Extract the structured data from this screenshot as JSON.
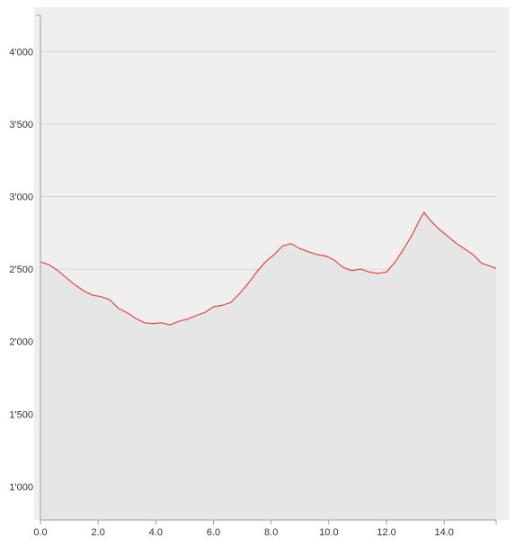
{
  "chart_data": {
    "type": "area",
    "title": "",
    "xlabel": "",
    "ylabel": "",
    "xlim": [
      0,
      15.8
    ],
    "ylim": [
      770,
      4250
    ],
    "grid": {
      "y": true,
      "x": false
    },
    "x_ticks": [
      {
        "value": 0,
        "label": "0.0"
      },
      {
        "value": 2,
        "label": "2.0"
      },
      {
        "value": 4,
        "label": "4.0"
      },
      {
        "value": 6,
        "label": "6.0"
      },
      {
        "value": 8,
        "label": "8.0"
      },
      {
        "value": 10,
        "label": "10.0"
      },
      {
        "value": 12,
        "label": "12.0"
      },
      {
        "value": 14,
        "label": "14.0"
      }
    ],
    "y_ticks": [
      {
        "value": 1000,
        "label": "1'000"
      },
      {
        "value": 1500,
        "label": "1'500"
      },
      {
        "value": 2000,
        "label": "2'000"
      },
      {
        "value": 2500,
        "label": "2'500"
      },
      {
        "value": 3000,
        "label": "3'000"
      },
      {
        "value": 3500,
        "label": "3'500"
      },
      {
        "value": 4000,
        "label": "4'000"
      }
    ],
    "series": [
      {
        "points": [
          [
            0.0,
            2550
          ],
          [
            0.3,
            2530
          ],
          [
            0.6,
            2490
          ],
          [
            0.9,
            2440
          ],
          [
            1.2,
            2390
          ],
          [
            1.5,
            2350
          ],
          [
            1.8,
            2320
          ],
          [
            2.1,
            2310
          ],
          [
            2.4,
            2290
          ],
          [
            2.7,
            2230
          ],
          [
            3.0,
            2200
          ],
          [
            3.3,
            2160
          ],
          [
            3.6,
            2130
          ],
          [
            3.9,
            2125
          ],
          [
            4.2,
            2130
          ],
          [
            4.5,
            2115
          ],
          [
            4.8,
            2140
          ],
          [
            5.1,
            2155
          ],
          [
            5.4,
            2180
          ],
          [
            5.7,
            2200
          ],
          [
            6.0,
            2240
          ],
          [
            6.3,
            2250
          ],
          [
            6.6,
            2270
          ],
          [
            6.9,
            2330
          ],
          [
            7.2,
            2400
          ],
          [
            7.5,
            2480
          ],
          [
            7.8,
            2550
          ],
          [
            8.1,
            2600
          ],
          [
            8.4,
            2660
          ],
          [
            8.7,
            2675
          ],
          [
            9.0,
            2640
          ],
          [
            9.3,
            2620
          ],
          [
            9.6,
            2600
          ],
          [
            9.9,
            2590
          ],
          [
            10.2,
            2560
          ],
          [
            10.5,
            2510
          ],
          [
            10.8,
            2490
          ],
          [
            11.1,
            2500
          ],
          [
            11.4,
            2480
          ],
          [
            11.7,
            2470
          ],
          [
            12.0,
            2480
          ],
          [
            12.3,
            2550
          ],
          [
            12.6,
            2640
          ],
          [
            12.9,
            2740
          ],
          [
            13.2,
            2860
          ],
          [
            13.3,
            2890
          ],
          [
            13.5,
            2840
          ],
          [
            13.8,
            2780
          ],
          [
            14.1,
            2730
          ],
          [
            14.4,
            2680
          ],
          [
            14.7,
            2640
          ],
          [
            15.0,
            2600
          ],
          [
            15.3,
            2540
          ],
          [
            15.6,
            2520
          ],
          [
            15.8,
            2505
          ]
        ],
        "color": "#e8473f"
      }
    ],
    "colors": {
      "page_background": "#ffffff",
      "plot_background": "#efefef",
      "area_fill": "#e6e6e6",
      "grid": "#d6d6d6",
      "axis": "#9e9e9e",
      "line": "#e8473f"
    }
  }
}
